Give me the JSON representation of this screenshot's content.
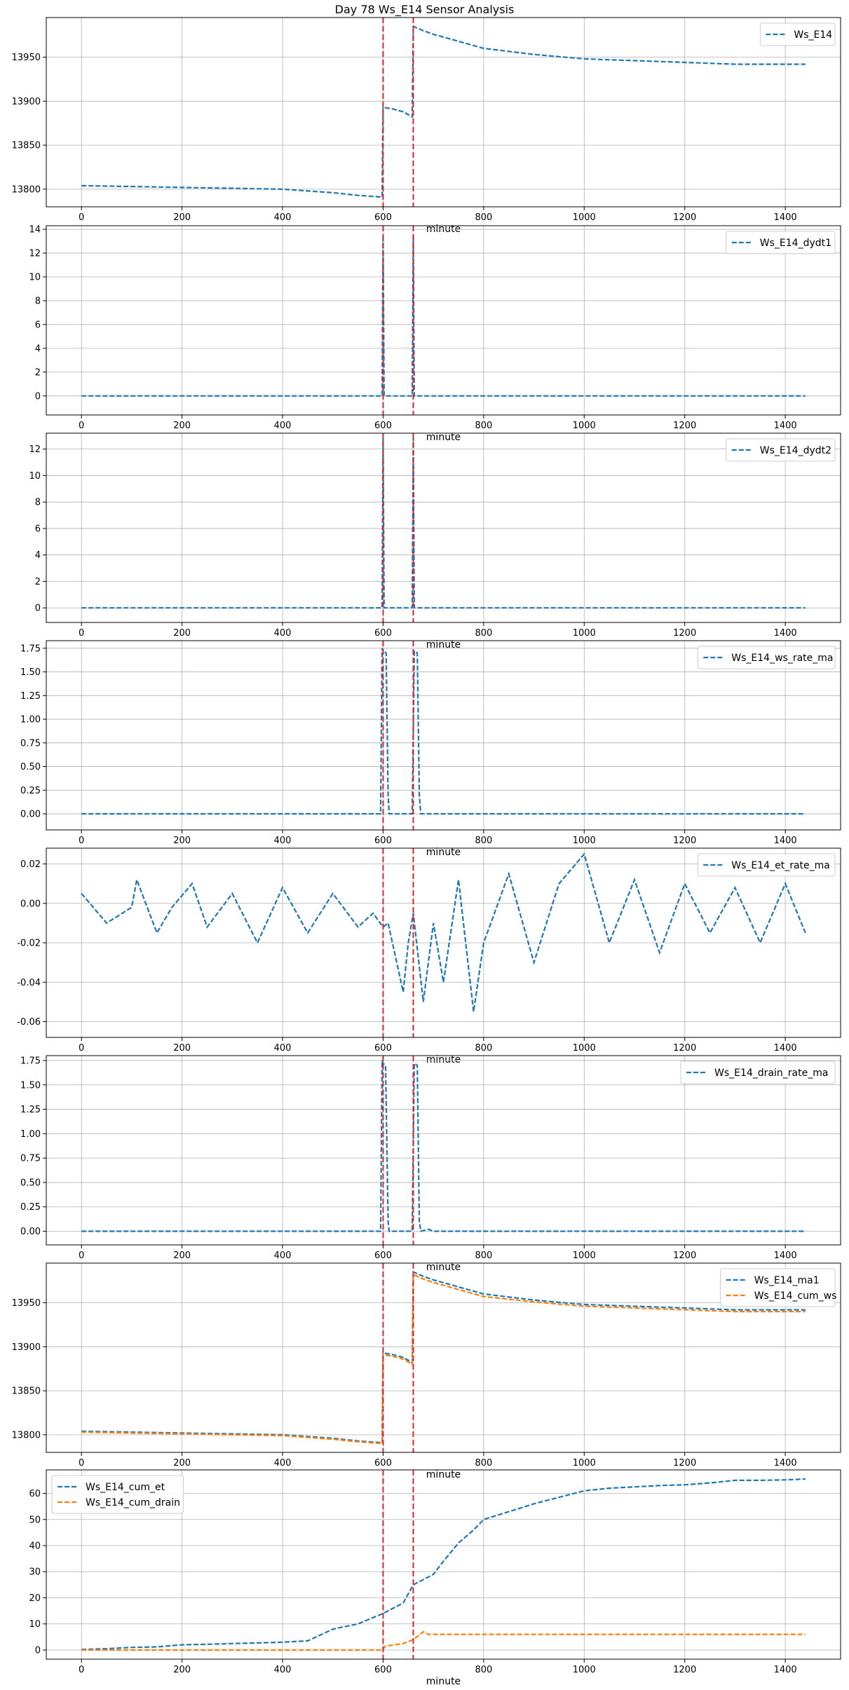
{
  "figure": {
    "title": "Day 78 Ws_E14 Sensor Analysis"
  },
  "colors": {
    "blue": "#1f77b4",
    "orange": "#ff7f0e",
    "vline": "#d62728",
    "grid": "#b0b0b0"
  },
  "chart_data": [
    {
      "type": "line",
      "xlabel": "minute",
      "xlim": [
        -70,
        1510
      ],
      "ylim": [
        13780,
        13995
      ],
      "xticks": [
        0,
        200,
        400,
        600,
        800,
        1000,
        1200,
        1400
      ],
      "yticks": [
        13800,
        13850,
        13900,
        13950
      ],
      "vlines": [
        600,
        660
      ],
      "legend_position": "upper right",
      "grid": true,
      "series": [
        {
          "name": "Ws_E14",
          "color": "#1f77b4",
          "style": "dashed",
          "x": [
            0,
            100,
            200,
            300,
            400,
            450,
            500,
            550,
            598,
            600,
            620,
            640,
            658,
            660,
            680,
            700,
            750,
            800,
            900,
            1000,
            1100,
            1200,
            1300,
            1440
          ],
          "y": [
            13804,
            13803,
            13802,
            13801,
            13800,
            13798,
            13796,
            13793,
            13791,
            13893,
            13891,
            13888,
            13882,
            13985,
            13980,
            13976,
            13968,
            13960,
            13953,
            13948,
            13946,
            13944,
            13942,
            13942
          ]
        }
      ]
    },
    {
      "type": "line",
      "xlabel": "minute",
      "xlim": [
        -70,
        1510
      ],
      "ylim": [
        -1.6,
        14.3
      ],
      "xticks": [
        0,
        200,
        400,
        600,
        800,
        1000,
        1200,
        1400
      ],
      "yticks": [
        0,
        2,
        4,
        6,
        8,
        10,
        12,
        14
      ],
      "vlines": [
        600,
        660
      ],
      "legend_position": "upper right",
      "grid": true,
      "series": [
        {
          "name": "Ws_E14_dydt1",
          "color": "#1f77b4",
          "style": "dashed",
          "x": [
            0,
            100,
            200,
            300,
            400,
            500,
            590,
            598,
            600,
            602,
            610,
            658,
            660,
            662,
            700,
            800,
            1000,
            1200,
            1440
          ],
          "y": [
            0,
            0,
            0,
            0,
            0,
            0,
            0,
            0,
            13.5,
            0,
            0,
            0,
            13.5,
            0,
            0,
            0,
            0,
            0,
            0
          ]
        }
      ]
    },
    {
      "type": "line",
      "xlabel": "minute",
      "xlim": [
        -70,
        1510
      ],
      "ylim": [
        -1.1,
        13.2
      ],
      "xticks": [
        0,
        200,
        400,
        600,
        800,
        1000,
        1200,
        1400
      ],
      "yticks": [
        0,
        2,
        4,
        6,
        8,
        10,
        12
      ],
      "vlines": [
        600,
        660
      ],
      "legend_position": "upper right",
      "grid": true,
      "series": [
        {
          "name": "Ws_E14_dydt2",
          "color": "#1f77b4",
          "style": "dashed",
          "x": [
            0,
            200,
            400,
            598,
            600,
            602,
            658,
            660,
            662,
            800,
            1000,
            1200,
            1440
          ],
          "y": [
            0,
            0,
            0,
            0,
            12.8,
            0,
            0,
            12.8,
            0,
            0,
            0,
            0,
            0
          ]
        }
      ]
    },
    {
      "type": "line",
      "xlabel": "minute",
      "xlim": [
        -70,
        1510
      ],
      "ylim": [
        -0.17,
        1.83
      ],
      "xticks": [
        0,
        200,
        400,
        600,
        800,
        1000,
        1200,
        1400
      ],
      "yticks": [
        0.0,
        0.25,
        0.5,
        0.75,
        1.0,
        1.25,
        1.5,
        1.75
      ],
      "ytick_labels": [
        "0.00",
        "0.25",
        "0.50",
        "0.75",
        "1.00",
        "1.25",
        "1.50",
        "1.75"
      ],
      "vlines": [
        600,
        660
      ],
      "legend_position": "upper right",
      "grid": true,
      "series": [
        {
          "name": "Ws_E14_ws_rate_ma",
          "color": "#1f77b4",
          "style": "dashed",
          "x": [
            0,
            200,
            400,
            595,
            598,
            600,
            606,
            610,
            612,
            640,
            658,
            662,
            668,
            672,
            675,
            800,
            1000,
            1200,
            1440
          ],
          "y": [
            0,
            0,
            0,
            0,
            1.75,
            1.72,
            1.7,
            0.2,
            0,
            0,
            0,
            1.72,
            1.7,
            0.2,
            0,
            0,
            0,
            0,
            0
          ]
        }
      ]
    },
    {
      "type": "line",
      "xlabel": "minute",
      "xlim": [
        -70,
        1510
      ],
      "ylim": [
        -0.068,
        0.028
      ],
      "xticks": [
        0,
        200,
        400,
        600,
        800,
        1000,
        1200,
        1400
      ],
      "yticks": [
        -0.06,
        -0.04,
        -0.02,
        0.0,
        0.02
      ],
      "ytick_labels": [
        "-0.06",
        "-0.04",
        "-0.02",
        "0.00",
        "0.02"
      ],
      "vlines": [
        600,
        660
      ],
      "legend_position": "upper right",
      "grid": true,
      "series": [
        {
          "name": "Ws_E14_et_rate_ma",
          "color": "#1f77b4",
          "style": "dashed",
          "x": [
            0,
            50,
            100,
            110,
            150,
            180,
            220,
            250,
            300,
            350,
            400,
            450,
            500,
            550,
            580,
            600,
            610,
            640,
            650,
            660,
            680,
            700,
            720,
            750,
            780,
            800,
            850,
            900,
            950,
            1000,
            1050,
            1100,
            1150,
            1200,
            1250,
            1300,
            1350,
            1400,
            1440
          ],
          "y": [
            0.005,
            -0.01,
            -0.002,
            0.012,
            -0.015,
            -0.002,
            0.01,
            -0.012,
            0.005,
            -0.02,
            0.008,
            -0.015,
            0.005,
            -0.012,
            -0.005,
            -0.012,
            -0.01,
            -0.045,
            -0.02,
            -0.005,
            -0.05,
            -0.01,
            -0.04,
            0.012,
            -0.055,
            -0.02,
            0.015,
            -0.03,
            0.01,
            0.025,
            -0.02,
            0.012,
            -0.025,
            0.01,
            -0.015,
            0.008,
            -0.02,
            0.01,
            -0.015
          ]
        }
      ]
    },
    {
      "type": "line",
      "xlabel": "minute",
      "xlim": [
        -70,
        1510
      ],
      "ylim": [
        -0.14,
        1.8
      ],
      "xticks": [
        0,
        200,
        400,
        600,
        800,
        1000,
        1200,
        1400
      ],
      "yticks": [
        0.0,
        0.25,
        0.5,
        0.75,
        1.0,
        1.25,
        1.5,
        1.75
      ],
      "ytick_labels": [
        "0.00",
        "0.25",
        "0.50",
        "0.75",
        "1.00",
        "1.25",
        "1.50",
        "1.75"
      ],
      "vlines": [
        600,
        660
      ],
      "legend_position": "upper right",
      "grid": true,
      "series": [
        {
          "name": "Ws_E14_drain_rate_ma",
          "color": "#1f77b4",
          "style": "dashed",
          "x": [
            0,
            200,
            400,
            595,
            598,
            600,
            605,
            610,
            612,
            640,
            658,
            662,
            668,
            672,
            675,
            690,
            700,
            1000,
            1440
          ],
          "y": [
            0,
            0,
            0,
            0,
            1.75,
            1.72,
            1.7,
            0.1,
            0,
            0,
            0,
            1.72,
            1.7,
            0.1,
            0,
            0.02,
            0,
            0,
            0
          ]
        }
      ]
    },
    {
      "type": "line",
      "xlabel": "minute",
      "xlim": [
        -70,
        1510
      ],
      "ylim": [
        13780,
        13995
      ],
      "xticks": [
        0,
        200,
        400,
        600,
        800,
        1000,
        1200,
        1400
      ],
      "yticks": [
        13800,
        13850,
        13900,
        13950
      ],
      "vlines": [
        600,
        660
      ],
      "legend_position": "upper right",
      "grid": true,
      "series": [
        {
          "name": "Ws_E14_ma1",
          "color": "#1f77b4",
          "style": "dashed",
          "x": [
            0,
            100,
            200,
            300,
            400,
            450,
            500,
            550,
            598,
            600,
            620,
            640,
            658,
            660,
            680,
            700,
            750,
            800,
            900,
            1000,
            1100,
            1200,
            1300,
            1440
          ],
          "y": [
            13804,
            13803,
            13802,
            13801,
            13800,
            13798,
            13796,
            13793,
            13791,
            13893,
            13891,
            13888,
            13882,
            13985,
            13980,
            13976,
            13968,
            13960,
            13953,
            13948,
            13946,
            13944,
            13942,
            13942
          ]
        },
        {
          "name": "Ws_E14_cum_ws",
          "color": "#ff7f0e",
          "style": "dashed",
          "x": [
            0,
            100,
            200,
            300,
            400,
            450,
            500,
            550,
            598,
            600,
            620,
            640,
            658,
            660,
            680,
            700,
            750,
            800,
            900,
            1000,
            1100,
            1200,
            1300,
            1440
          ],
          "y": [
            13803,
            13802,
            13801,
            13800,
            13799,
            13797,
            13795,
            13792,
            13790,
            13891,
            13889,
            13886,
            13880,
            13982,
            13977,
            13973,
            13965,
            13957,
            13951,
            13946,
            13944,
            13942,
            13940,
            13940
          ]
        }
      ]
    },
    {
      "type": "line",
      "xlabel": "minute",
      "xlim": [
        -70,
        1510
      ],
      "ylim": [
        -3.5,
        69
      ],
      "xticks": [
        0,
        200,
        400,
        600,
        800,
        1000,
        1200,
        1400
      ],
      "yticks": [
        0,
        10,
        20,
        30,
        40,
        50,
        60
      ],
      "vlines": [
        600,
        660
      ],
      "legend_position": "upper left",
      "grid": true,
      "series": [
        {
          "name": "Ws_E14_cum_et",
          "color": "#1f77b4",
          "style": "dashed",
          "x": [
            0,
            50,
            100,
            150,
            200,
            250,
            300,
            350,
            400,
            450,
            500,
            550,
            600,
            640,
            660,
            700,
            720,
            750,
            780,
            800,
            850,
            900,
            950,
            1000,
            1050,
            1100,
            1150,
            1200,
            1250,
            1300,
            1350,
            1400,
            1440
          ],
          "y": [
            0.2,
            0.5,
            1.0,
            1.2,
            2.0,
            2.2,
            2.5,
            2.7,
            3.0,
            3.5,
            8.0,
            10.0,
            14.0,
            18.0,
            25.0,
            29.0,
            34.0,
            41.0,
            46.0,
            50.0,
            53.0,
            56.0,
            58.5,
            61.0,
            62.0,
            62.5,
            63.0,
            63.3,
            64.0,
            65.0,
            65.0,
            65.2,
            65.5
          ]
        },
        {
          "name": "Ws_E14_cum_drain",
          "color": "#ff7f0e",
          "style": "dashed",
          "x": [
            0,
            200,
            400,
            598,
            605,
            640,
            660,
            670,
            680,
            690,
            700,
            800,
            1000,
            1200,
            1440
          ],
          "y": [
            0,
            0,
            0,
            0,
            1.5,
            2.5,
            4.0,
            5.5,
            7.0,
            6.0,
            6.0,
            6.0,
            6.0,
            6.0,
            6.0
          ]
        }
      ]
    }
  ]
}
